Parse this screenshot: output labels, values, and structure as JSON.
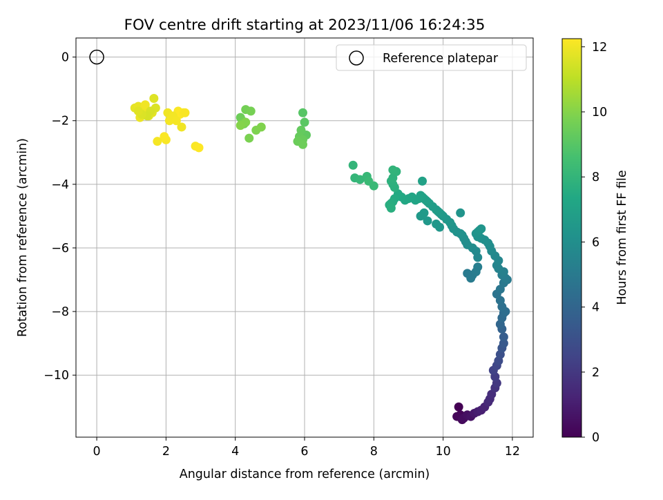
{
  "chart_data": {
    "type": "scatter",
    "title": "FOV centre drift starting at 2023/11/06 16:24:35",
    "xlabel": "Angular distance from reference (arcmin)",
    "ylabel": "Rotation from reference (arcmin)",
    "xlim": [
      -0.6,
      12.6
    ],
    "ylim": [
      -11.95,
      0.6
    ],
    "x_ticks": [
      0,
      2,
      4,
      6,
      8,
      10,
      12
    ],
    "x_tick_labels": [
      "0",
      "2",
      "4",
      "6",
      "8",
      "10",
      "12"
    ],
    "y_ticks": [
      0,
      -2,
      -4,
      -6,
      -8,
      -10
    ],
    "y_tick_labels": [
      "0",
      "−2",
      "−4",
      "−6",
      "−8",
      "−10"
    ],
    "grid": true,
    "legend": {
      "position": "upper-right",
      "entries": [
        "Reference platepar"
      ]
    },
    "reference_point": {
      "x": 0,
      "y": 0,
      "marker": "open-circle"
    },
    "colorbar": {
      "label": "Hours from first FF file",
      "range": [
        0,
        12.25
      ],
      "ticks": [
        0,
        2,
        4,
        6,
        8,
        10,
        12
      ],
      "tick_labels": [
        "0",
        "2",
        "4",
        "6",
        "8",
        "10",
        "12"
      ],
      "colormap": "viridis"
    },
    "series": [
      {
        "color_by": "hours",
        "x": [
          10.45,
          10.5,
          10.4,
          10.55,
          10.6,
          10.7,
          10.8,
          10.9,
          11.0,
          11.1,
          11.2,
          11.3,
          11.35,
          11.4,
          11.5,
          11.55,
          11.5,
          11.45,
          11.55,
          11.6,
          11.65,
          11.7,
          11.75,
          11.75,
          11.7,
          11.65,
          11.7,
          11.75,
          11.8,
          11.7,
          11.65,
          11.55,
          11.65,
          11.75,
          11.85,
          11.8,
          11.7,
          11.75,
          11.6,
          11.55,
          11.6,
          11.5,
          11.4,
          11.35,
          11.3,
          11.2,
          11.1,
          11.0,
          10.95,
          11.0,
          11.05,
          11.1,
          11.0,
          10.95,
          10.85,
          10.8,
          10.7,
          10.65,
          10.6,
          10.55,
          10.5,
          10.4,
          10.3,
          10.25,
          10.2,
          10.1,
          10.0,
          9.95,
          9.9,
          9.85,
          9.8,
          9.7,
          9.6,
          9.55,
          9.5,
          9.45,
          9.4,
          9.35,
          9.3,
          9.2,
          9.1,
          9.0,
          8.9,
          8.8,
          8.7,
          8.6,
          8.55,
          8.5,
          8.45,
          8.5,
          8.6,
          8.55,
          8.5,
          8.55,
          8.65,
          8.55,
          9.4,
          9.45,
          9.35,
          9.55,
          9.8,
          9.9,
          10.5,
          10.85,
          10.7,
          10.95,
          11.0,
          7.4,
          7.45,
          7.6,
          7.8,
          8.0,
          7.85,
          5.95,
          6.0,
          6.05,
          5.9,
          5.85,
          5.95,
          5.8,
          5.95,
          4.15,
          4.2,
          4.25,
          4.3,
          4.45,
          4.2,
          4.4,
          4.6,
          4.75,
          4.3,
          4.15,
          1.1,
          1.2,
          1.25,
          1.35,
          1.4,
          1.5,
          1.6,
          1.65,
          1.7,
          1.55,
          1.45,
          1.3,
          1.2,
          2.05,
          2.1,
          2.2,
          2.3,
          2.35,
          2.4,
          2.5,
          2.55,
          2.15,
          2.2,
          2.45,
          2.3,
          2.0,
          1.95,
          1.75,
          2.85,
          2.95
        ],
        "y": [
          -11.0,
          -11.25,
          -11.3,
          -11.4,
          -11.35,
          -11.25,
          -11.3,
          -11.2,
          -11.15,
          -11.1,
          -11.0,
          -10.85,
          -10.75,
          -10.6,
          -10.4,
          -10.25,
          -10.05,
          -9.85,
          -9.7,
          -9.55,
          -9.35,
          -9.15,
          -9.0,
          -8.8,
          -8.55,
          -8.4,
          -8.2,
          -8.05,
          -8.0,
          -7.85,
          -7.65,
          -7.45,
          -7.3,
          -7.1,
          -7.0,
          -6.95,
          -6.85,
          -6.75,
          -6.65,
          -6.55,
          -6.4,
          -6.25,
          -6.1,
          -5.95,
          -5.85,
          -5.75,
          -5.7,
          -5.65,
          -5.55,
          -5.5,
          -5.45,
          -5.4,
          -6.6,
          -6.75,
          -6.85,
          -6.95,
          -6.8,
          -5.8,
          -5.7,
          -5.6,
          -5.55,
          -5.5,
          -5.4,
          -5.3,
          -5.2,
          -5.1,
          -5.0,
          -4.95,
          -4.9,
          -4.85,
          -4.8,
          -4.7,
          -4.6,
          -4.55,
          -4.5,
          -4.45,
          -4.4,
          -4.35,
          -4.45,
          -4.5,
          -4.4,
          -4.45,
          -4.5,
          -4.4,
          -4.3,
          -4.45,
          -4.55,
          -4.6,
          -4.65,
          -4.75,
          -4.1,
          -4.0,
          -3.9,
          -3.8,
          -3.6,
          -3.55,
          -3.9,
          -4.9,
          -5.0,
          -5.15,
          -5.25,
          -5.35,
          -4.9,
          -6.0,
          -5.9,
          -6.1,
          -6.3,
          -3.4,
          -3.8,
          -3.85,
          -3.75,
          -4.05,
          -3.9,
          -1.75,
          -2.05,
          -2.45,
          -2.3,
          -2.5,
          -2.6,
          -2.65,
          -2.75,
          -1.9,
          -2.0,
          -2.1,
          -1.65,
          -1.7,
          -2.1,
          -2.55,
          -2.3,
          -2.2,
          -2.05,
          -2.15,
          -1.6,
          -1.55,
          -1.9,
          -1.65,
          -1.5,
          -1.85,
          -1.75,
          -1.3,
          -1.6,
          -1.7,
          -1.85,
          -1.8,
          -1.7,
          -1.75,
          -2.0,
          -1.9,
          -1.85,
          -1.7,
          -1.8,
          -1.75,
          -1.75,
          -1.95,
          -1.85,
          -2.2,
          -2.0,
          -2.6,
          -2.5,
          -2.65,
          -2.8,
          -2.85
        ],
        "hours": [
          0.0,
          0.1,
          0.2,
          0.3,
          0.4,
          0.5,
          0.6,
          0.8,
          1.0,
          1.1,
          1.2,
          1.4,
          1.5,
          1.6,
          1.8,
          2.0,
          2.2,
          2.4,
          2.6,
          2.8,
          3.0,
          3.2,
          3.4,
          3.6,
          3.8,
          4.0,
          4.2,
          4.3,
          4.4,
          4.5,
          4.6,
          4.7,
          4.8,
          4.9,
          5.0,
          5.1,
          5.2,
          5.3,
          5.4,
          5.5,
          5.6,
          5.7,
          5.8,
          5.9,
          6.0,
          6.05,
          6.1,
          6.15,
          6.2,
          6.25,
          6.3,
          6.35,
          5.2,
          5.15,
          5.1,
          5.05,
          5.0,
          6.0,
          6.05,
          6.1,
          6.15,
          6.2,
          6.25,
          6.3,
          6.4,
          6.45,
          6.5,
          6.55,
          6.6,
          6.65,
          6.7,
          6.75,
          6.8,
          6.85,
          6.9,
          6.95,
          7.0,
          7.05,
          7.1,
          7.15,
          7.2,
          7.25,
          7.3,
          7.35,
          7.4,
          7.45,
          7.5,
          7.55,
          7.6,
          7.65,
          7.7,
          7.75,
          7.8,
          7.85,
          7.9,
          7.95,
          7.0,
          6.6,
          6.55,
          6.5,
          6.45,
          6.4,
          6.3,
          5.9,
          5.95,
          5.8,
          5.7,
          8.0,
          8.05,
          8.1,
          8.15,
          8.2,
          8.25,
          9.0,
          9.1,
          9.2,
          9.3,
          9.35,
          9.4,
          9.45,
          9.5,
          9.5,
          9.55,
          9.6,
          9.65,
          9.7,
          9.75,
          9.8,
          9.85,
          9.9,
          9.95,
          10.0,
          11.8,
          11.85,
          11.9,
          11.95,
          12.0,
          11.7,
          11.75,
          11.65,
          11.6,
          11.55,
          11.5,
          11.6,
          11.7,
          12.0,
          12.05,
          12.1,
          12.15,
          12.2,
          12.25,
          12.2,
          12.15,
          12.1,
          12.05,
          12.0,
          12.1,
          12.15,
          12.2,
          12.1,
          12.2,
          12.25
        ]
      }
    ]
  }
}
